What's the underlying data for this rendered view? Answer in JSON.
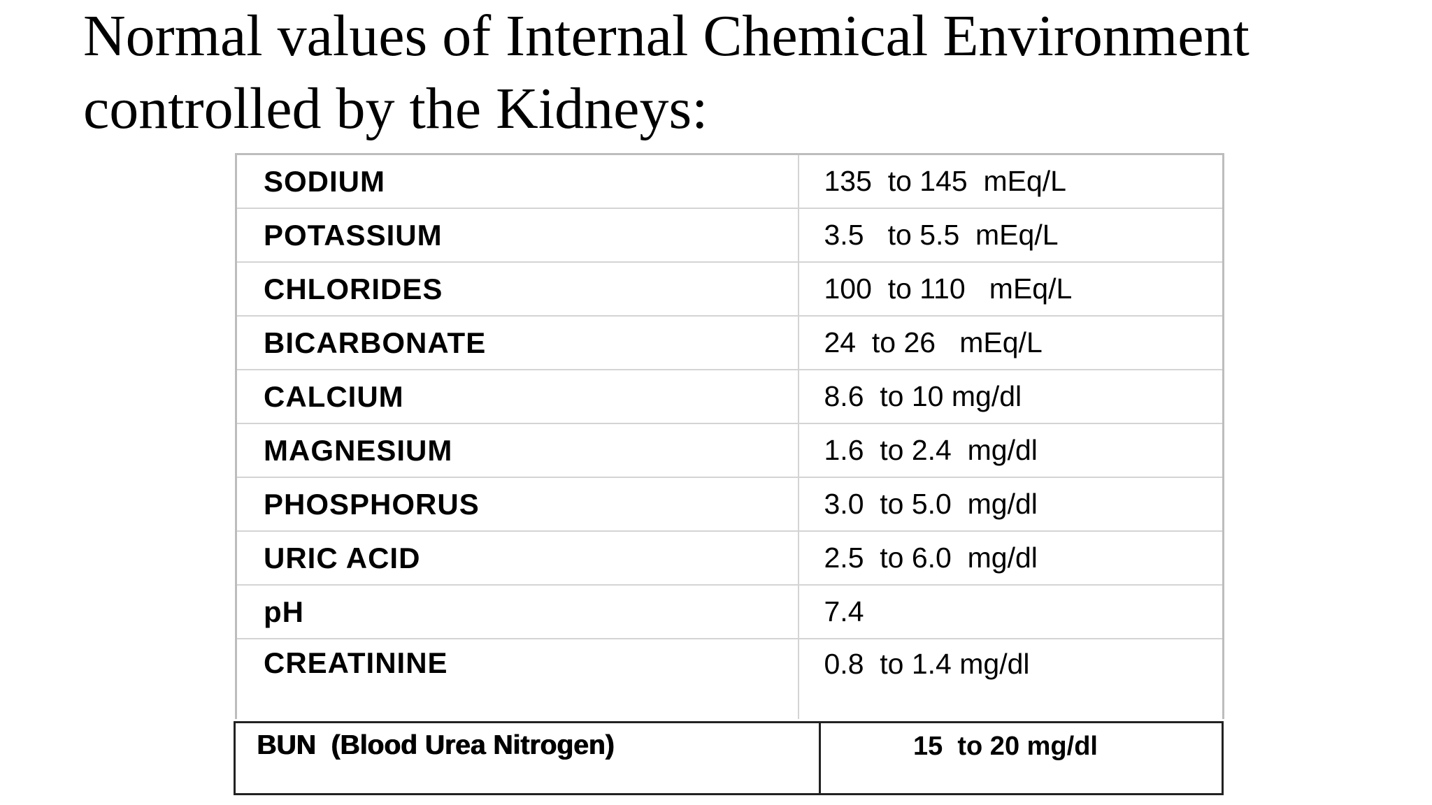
{
  "title": {
    "line1": "Normal values of Internal Chemical Environment",
    "line2": "controlled by the Kidneys:"
  },
  "rows": [
    {
      "name": "SODIUM",
      "value": "135  to 145  mEq/L"
    },
    {
      "name": "POTASSIUM",
      "value": "3.5   to 5.5  mEq/L"
    },
    {
      "name": "CHLORIDES",
      "value": "100  to 110   mEq/L"
    },
    {
      "name": "BICARBONATE",
      "value": "24  to 26   mEq/L"
    },
    {
      "name": "CALCIUM",
      "value": "8.6  to 10 mg/dl"
    },
    {
      "name": "MAGNESIUM",
      "value": "1.6  to 2.4  mg/dl"
    },
    {
      "name": "PHOSPHORUS",
      "value": "3.0  to 5.0  mg/dl"
    },
    {
      "name": "URIC ACID",
      "value": "2.5  to 6.0  mg/dl"
    },
    {
      "name": "pH",
      "value": "7.4"
    },
    {
      "name": "CREATININE",
      "value": "0.8  to 1.4 mg/dl"
    }
  ],
  "bun": {
    "name": "BUN  (Blood Urea Nitrogen)",
    "value": "15  to 20 mg/dl"
  }
}
